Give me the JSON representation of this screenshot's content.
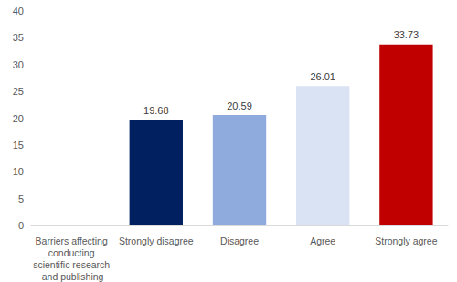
{
  "chart_data": {
    "type": "bar",
    "categories": [
      "Barriers affecting conducting scientific research and publishing",
      "Strongly disagree",
      "Disagree",
      "Agree",
      "Strongly agree"
    ],
    "values": [
      null,
      19.68,
      20.59,
      26.01,
      33.73
    ],
    "colors": [
      null,
      "#002060",
      "#8faadc",
      "#dae3f3",
      "#c00000"
    ],
    "ylim": [
      0,
      40
    ],
    "yticks": [
      0,
      5,
      10,
      15,
      20,
      25,
      30,
      35,
      40
    ],
    "grid": false,
    "data_labels": true
  }
}
